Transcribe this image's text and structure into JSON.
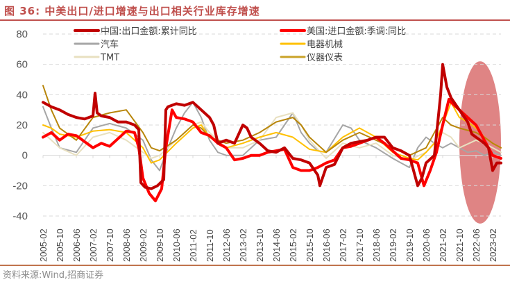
{
  "title": "图 36:  中美出口/进口增速与出口相关行业库存增速",
  "source": "资料来源:Wind,招商证券",
  "chart_data": {
    "type": "line",
    "title": "中美出口/进口增速与出口相关行业库存增速",
    "xlabel": "",
    "ylabel": "",
    "ylim": [
      -40,
      80
    ],
    "yticks": [
      80,
      60,
      40,
      20,
      0,
      -20,
      -40
    ],
    "grid": "dashed-horizontal",
    "legend_position": "top",
    "x_tick_labels": [
      "2005-02",
      "2005-10",
      "2006-06",
      "2007-02",
      "2007-10",
      "2008-06",
      "2009-02",
      "2009-10",
      "2010-06",
      "2011-02",
      "2011-10",
      "2012-06",
      "2013-02",
      "2013-10",
      "2014-06",
      "2015-02",
      "2015-10",
      "2016-06",
      "2017-02",
      "2017-10",
      "2018-06",
      "2019-02",
      "2019-10",
      "2020-06",
      "2021-02",
      "2021-10",
      "2022-06",
      "2023-02"
    ],
    "x_start": "2005-02",
    "x_end": "2023-06",
    "highlight": {
      "shape": "ellipse",
      "x_from": "2021-10",
      "x_to": "2023-06",
      "y_from": -45,
      "y_to": 62,
      "color": "#d35454"
    },
    "series": [
      {
        "name": "中国:出口金额:累计同比",
        "color": "#c00000",
        "width": 4,
        "x": [
          "2005-02",
          "2005-06",
          "2005-10",
          "2006-02",
          "2006-06",
          "2006-10",
          "2007-02",
          "2007-03",
          "2007-04",
          "2007-06",
          "2007-10",
          "2008-02",
          "2008-06",
          "2008-10",
          "2008-12",
          "2009-01",
          "2009-03",
          "2009-06",
          "2009-09",
          "2009-12",
          "2010-01",
          "2010-02",
          "2010-06",
          "2010-10",
          "2011-02",
          "2011-06",
          "2011-10",
          "2011-12",
          "2012-02",
          "2012-06",
          "2012-10",
          "2013-02",
          "2013-04",
          "2013-06",
          "2013-10",
          "2014-02",
          "2014-06",
          "2014-10",
          "2015-02",
          "2015-06",
          "2015-10",
          "2016-02",
          "2016-03",
          "2016-06",
          "2016-10",
          "2017-02",
          "2017-06",
          "2017-10",
          "2018-02",
          "2018-06",
          "2018-10",
          "2019-02",
          "2019-06",
          "2019-10",
          "2020-02",
          "2020-04",
          "2020-06",
          "2020-10",
          "2021-01",
          "2021-02",
          "2021-04",
          "2021-06",
          "2021-10",
          "2022-02",
          "2022-04",
          "2022-06",
          "2022-10",
          "2022-12",
          "2023-02",
          "2023-04",
          "2023-06"
        ],
        "values": [
          35,
          32,
          30,
          27,
          25,
          24,
          26,
          41,
          28,
          26,
          25,
          22,
          22,
          20,
          17,
          -18,
          -21,
          -22,
          -20,
          -16,
          30,
          32,
          34,
          33,
          35,
          30,
          25,
          20,
          8,
          10,
          8,
          20,
          18,
          12,
          8,
          3,
          2,
          5,
          -2,
          -3,
          -5,
          -13,
          -20,
          -8,
          -6,
          5,
          8,
          9,
          10,
          12,
          12,
          5,
          3,
          0,
          -20,
          -15,
          -5,
          0,
          40,
          60,
          45,
          38,
          30,
          22,
          14,
          12,
          8,
          5,
          -10,
          -5,
          -5
        ]
      },
      {
        "name": "美国:进口金额:季调:同比",
        "color": "#ff0000",
        "width": 4,
        "x": [
          "2005-02",
          "2005-06",
          "2005-10",
          "2006-02",
          "2006-06",
          "2006-10",
          "2007-02",
          "2007-06",
          "2007-10",
          "2008-02",
          "2008-06",
          "2008-10",
          "2008-12",
          "2009-02",
          "2009-05",
          "2009-08",
          "2009-11",
          "2010-01",
          "2010-04",
          "2010-06",
          "2010-10",
          "2011-02",
          "2011-06",
          "2011-10",
          "2012-02",
          "2012-06",
          "2012-10",
          "2013-02",
          "2013-06",
          "2013-10",
          "2014-02",
          "2014-06",
          "2014-10",
          "2015-02",
          "2015-06",
          "2015-10",
          "2016-02",
          "2016-06",
          "2016-10",
          "2017-02",
          "2017-06",
          "2017-10",
          "2018-02",
          "2018-06",
          "2018-10",
          "2019-02",
          "2019-06",
          "2019-10",
          "2020-02",
          "2020-05",
          "2020-08",
          "2020-11",
          "2021-02",
          "2021-05",
          "2021-06",
          "2021-10",
          "2022-02",
          "2022-06",
          "2022-10",
          "2023-02",
          "2023-06"
        ],
        "values": [
          12,
          15,
          10,
          14,
          13,
          9,
          5,
          8,
          6,
          11,
          16,
          15,
          5,
          -15,
          -25,
          -30,
          -22,
          5,
          30,
          25,
          24,
          22,
          15,
          13,
          8,
          5,
          -3,
          -2,
          0,
          0,
          2,
          3,
          4,
          -8,
          -10,
          -10,
          -8,
          -5,
          -3,
          5,
          6,
          8,
          10,
          12,
          8,
          3,
          -2,
          -3,
          -5,
          -20,
          -10,
          2,
          20,
          37,
          35,
          30,
          25,
          20,
          10,
          0,
          -2
        ]
      },
      {
        "name": "汽车",
        "color": "#a6a6a6",
        "width": 2,
        "x": [
          "2005-02",
          "2005-06",
          "2005-10",
          "2006-06",
          "2007-02",
          "2007-10",
          "2008-06",
          "2009-02",
          "2009-06",
          "2009-10",
          "2010-02",
          "2010-06",
          "2010-10",
          "2011-02",
          "2011-06",
          "2011-10",
          "2012-02",
          "2012-06",
          "2013-02",
          "2013-10",
          "2014-06",
          "2015-02",
          "2015-06",
          "2015-10",
          "2016-02",
          "2016-06",
          "2017-02",
          "2017-06",
          "2017-10",
          "2018-06",
          "2019-02",
          "2019-06",
          "2019-10",
          "2020-02",
          "2020-06",
          "2020-10",
          "2021-02",
          "2021-06",
          "2021-10",
          "2022-02",
          "2022-06",
          "2022-10",
          "2023-02",
          "2023-06"
        ],
        "values": [
          32,
          18,
          5,
          2,
          18,
          21,
          18,
          10,
          -3,
          -10,
          5,
          18,
          28,
          35,
          25,
          10,
          2,
          0,
          0,
          10,
          12,
          28,
          15,
          8,
          3,
          2,
          20,
          18,
          10,
          5,
          -2,
          -5,
          -8,
          5,
          12,
          8,
          5,
          8,
          5,
          2,
          3,
          0,
          2,
          0
        ]
      },
      {
        "name": "电器机械",
        "color": "#ffc000",
        "width": 2,
        "x": [
          "2005-02",
          "2005-06",
          "2005-10",
          "2006-06",
          "2007-02",
          "2007-10",
          "2008-06",
          "2009-02",
          "2009-06",
          "2009-10",
          "2010-06",
          "2011-02",
          "2011-06",
          "2011-10",
          "2012-06",
          "2013-02",
          "2013-10",
          "2014-06",
          "2015-02",
          "2015-06",
          "2015-10",
          "2016-06",
          "2017-02",
          "2017-10",
          "2018-06",
          "2019-02",
          "2019-10",
          "2020-02",
          "2020-06",
          "2020-10",
          "2021-02",
          "2021-06",
          "2021-10",
          "2022-02",
          "2022-06",
          "2022-10",
          "2023-02",
          "2023-06"
        ],
        "values": [
          20,
          18,
          14,
          12,
          16,
          17,
          15,
          5,
          -5,
          -3,
          8,
          18,
          20,
          12,
          5,
          8,
          12,
          15,
          12,
          8,
          4,
          2,
          12,
          18,
          12,
          2,
          -2,
          -3,
          2,
          8,
          20,
          35,
          25,
          22,
          18,
          12,
          8,
          5
        ]
      },
      {
        "name": "TMT",
        "color": "#e8e0c0",
        "width": 2,
        "x": [
          "2005-02",
          "2005-06",
          "2005-10",
          "2006-06",
          "2007-02",
          "2007-10",
          "2008-06",
          "2009-02",
          "2009-06",
          "2009-10",
          "2010-06",
          "2011-02",
          "2011-06",
          "2011-10",
          "2012-06",
          "2013-02",
          "2013-10",
          "2014-06",
          "2015-02",
          "2015-06",
          "2015-10",
          "2016-06",
          "2017-02",
          "2017-10",
          "2018-06",
          "2019-02",
          "2019-10",
          "2020-06",
          "2021-02",
          "2021-06",
          "2021-10",
          "2022-06",
          "2022-10",
          "2023-02",
          "2023-06"
        ],
        "values": [
          15,
          10,
          5,
          0,
          12,
          15,
          10,
          2,
          -2,
          0,
          10,
          20,
          22,
          15,
          5,
          5,
          10,
          25,
          28,
          20,
          10,
          -2,
          8,
          5,
          8,
          0,
          -3,
          2,
          15,
          12,
          5,
          10,
          8,
          5,
          2
        ]
      },
      {
        "name": "仪器仪表",
        "color": "#b8860b",
        "width": 2,
        "x": [
          "2005-02",
          "2005-06",
          "2005-10",
          "2006-06",
          "2007-02",
          "2007-10",
          "2008-06",
          "2009-02",
          "2009-06",
          "2009-10",
          "2010-06",
          "2011-02",
          "2011-06",
          "2011-10",
          "2012-06",
          "2013-02",
          "2013-10",
          "2014-06",
          "2015-02",
          "2015-06",
          "2015-10",
          "2016-06",
          "2017-02",
          "2017-10",
          "2018-06",
          "2019-02",
          "2019-10",
          "2020-06",
          "2021-02",
          "2021-06",
          "2021-10",
          "2022-06",
          "2022-10",
          "2023-02",
          "2023-06"
        ],
        "values": [
          46,
          30,
          18,
          10,
          25,
          28,
          30,
          15,
          5,
          3,
          10,
          20,
          18,
          12,
          8,
          10,
          15,
          22,
          25,
          20,
          12,
          2,
          10,
          15,
          10,
          5,
          0,
          5,
          25,
          20,
          18,
          15,
          12,
          8,
          5
        ]
      }
    ]
  },
  "legend": [
    {
      "label": "中国:出口金额:累计同比",
      "color": "#c00000"
    },
    {
      "label": "美国:进口金额:季调:同比",
      "color": "#ff0000"
    },
    {
      "label": "汽车",
      "color": "#a6a6a6"
    },
    {
      "label": "电器机械",
      "color": "#ffc000"
    },
    {
      "label": "TMT",
      "color": "#e8e0c0"
    },
    {
      "label": "仪器仪表",
      "color": "#c9a227"
    }
  ]
}
